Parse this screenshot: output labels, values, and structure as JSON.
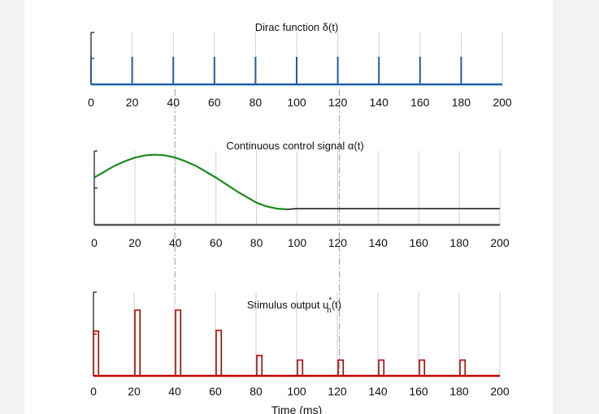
{
  "colors": {
    "dirac": "#1f5fa8",
    "control": "#1a8a1a",
    "stimulus": "#c00000",
    "axis": "#111111",
    "grid": "#cfcfcf"
  },
  "chart_data": [
    {
      "type": "line",
      "title": "Dirac function δ(t)",
      "xlabel": "",
      "ylabel": "",
      "xlim": [
        0,
        200
      ],
      "ticks": [
        "0",
        "20",
        "40",
        "60",
        "80",
        "100",
        "120",
        "140",
        "160",
        "180",
        "200"
      ],
      "grid": "vertical",
      "series": [
        {
          "impulses_at": [
            0,
            20,
            40,
            60,
            80,
            100,
            120,
            140,
            160,
            180
          ],
          "height": 1
        }
      ]
    },
    {
      "type": "line",
      "title": "Continuous control signal α(t)",
      "xlabel": "",
      "ylabel": "",
      "xlim": [
        0,
        200
      ],
      "ylim": [
        0,
        1
      ],
      "ticks": [
        "0",
        "20",
        "40",
        "60",
        "80",
        "100",
        "120",
        "140",
        "160",
        "180",
        "200"
      ],
      "grid": "vertical",
      "series": [
        {
          "x": [
            0,
            5,
            10,
            15,
            20,
            25,
            30,
            35,
            40,
            45,
            50,
            55,
            60,
            65,
            70,
            75,
            80,
            85,
            90,
            95,
            100,
            120,
            140,
            160,
            180,
            200
          ],
          "y": [
            0.64,
            0.72,
            0.8,
            0.86,
            0.91,
            0.94,
            0.95,
            0.94,
            0.91,
            0.86,
            0.8,
            0.72,
            0.64,
            0.55,
            0.46,
            0.38,
            0.3,
            0.25,
            0.22,
            0.21,
            0.22,
            0.22,
            0.22,
            0.22,
            0.22,
            0.22
          ]
        }
      ]
    },
    {
      "type": "line",
      "title": "Stimulus output u",
      "title_sub": "n",
      "title_sup": "*",
      "title_tail": "(t)",
      "xlabel": "Time (ms)",
      "ylabel": "",
      "xlim": [
        0,
        200
      ],
      "ylim": [
        0,
        1
      ],
      "ticks": [
        "0",
        "20",
        "40",
        "60",
        "80",
        "100",
        "120",
        "140",
        "160",
        "180",
        "200"
      ],
      "grid": "vertical",
      "series": [
        {
          "pulse_width": 2.5,
          "pulses": [
            {
              "t": 0,
              "h": 0.68
            },
            {
              "t": 20,
              "h": 1.0
            },
            {
              "t": 40,
              "h": 1.0
            },
            {
              "t": 60,
              "h": 0.69
            },
            {
              "t": 80,
              "h": 0.31
            },
            {
              "t": 100,
              "h": 0.24
            },
            {
              "t": 120,
              "h": 0.24
            },
            {
              "t": 140,
              "h": 0.24
            },
            {
              "t": 160,
              "h": 0.24
            },
            {
              "t": 180,
              "h": 0.24
            }
          ]
        }
      ]
    }
  ]
}
